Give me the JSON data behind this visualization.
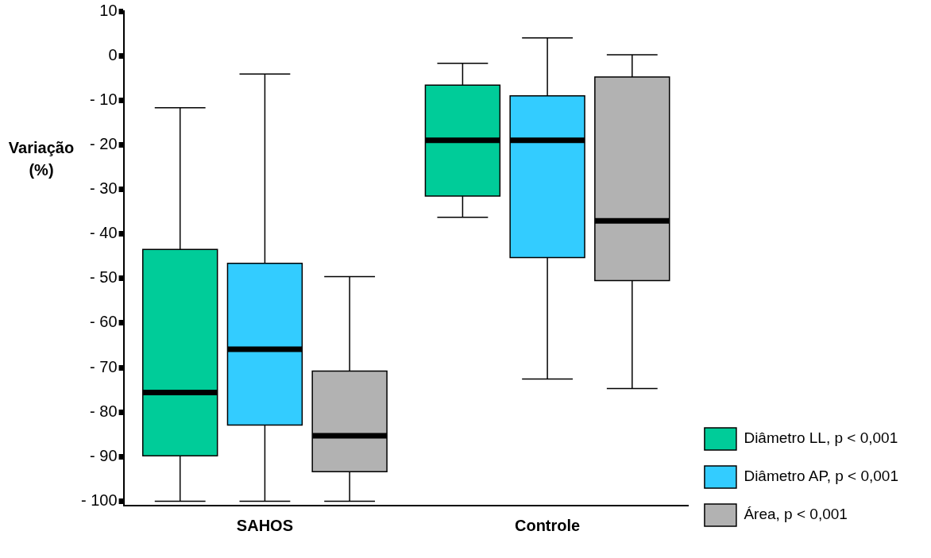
{
  "chart_data": {
    "type": "box",
    "ylabel": "Variação (%)",
    "categories": [
      "SAHOS",
      "Controle"
    ],
    "series": [
      {
        "name": "Diâmetro LL, p < 0,001",
        "color": "#00cc99",
        "boxes": [
          {
            "low": -100,
            "q1": -89.8,
            "median": -75.6,
            "q3": -43.5,
            "high": -11.7
          },
          {
            "low": -36.3,
            "q1": -31.5,
            "median": -19,
            "q3": -6.6,
            "high": -1.7
          }
        ]
      },
      {
        "name": "Diâmetro AP, p < 0,001",
        "color": "#33ccff",
        "boxes": [
          {
            "low": -100,
            "q1": -82.9,
            "median": -65.9,
            "q3": -46.6,
            "high": -4.1
          },
          {
            "low": -72.6,
            "q1": -45.3,
            "median": -19,
            "q3": -9,
            "high": 4
          }
        ]
      },
      {
        "name": "Área, p < 0,001",
        "color": "#b2b2b2",
        "boxes": [
          {
            "low": -100,
            "q1": -93.4,
            "median": -85.3,
            "q3": -70.8,
            "high": -49.6
          },
          {
            "low": -74.7,
            "q1": -50.5,
            "median": -37.1,
            "q3": -4.8,
            "high": 0.2
          }
        ]
      }
    ],
    "ylim": [
      -101,
      10
    ],
    "yticks": [
      10,
      0,
      {
        "value": -10,
        "label": "- 10"
      },
      {
        "value": -20,
        "label": "- 20"
      },
      {
        "value": -30,
        "label": "- 30"
      },
      {
        "value": -40,
        "label": "- 40"
      },
      {
        "value": -50,
        "label": "- 50"
      },
      {
        "value": -60,
        "label": "- 60"
      },
      {
        "value": -70,
        "label": "- 70"
      },
      {
        "value": -80,
        "label": "- 80"
      },
      {
        "value": -90,
        "label": "- 90"
      },
      {
        "value": -100,
        "label": "- 100"
      }
    ],
    "legend": "bottom right",
    "grid": false
  }
}
